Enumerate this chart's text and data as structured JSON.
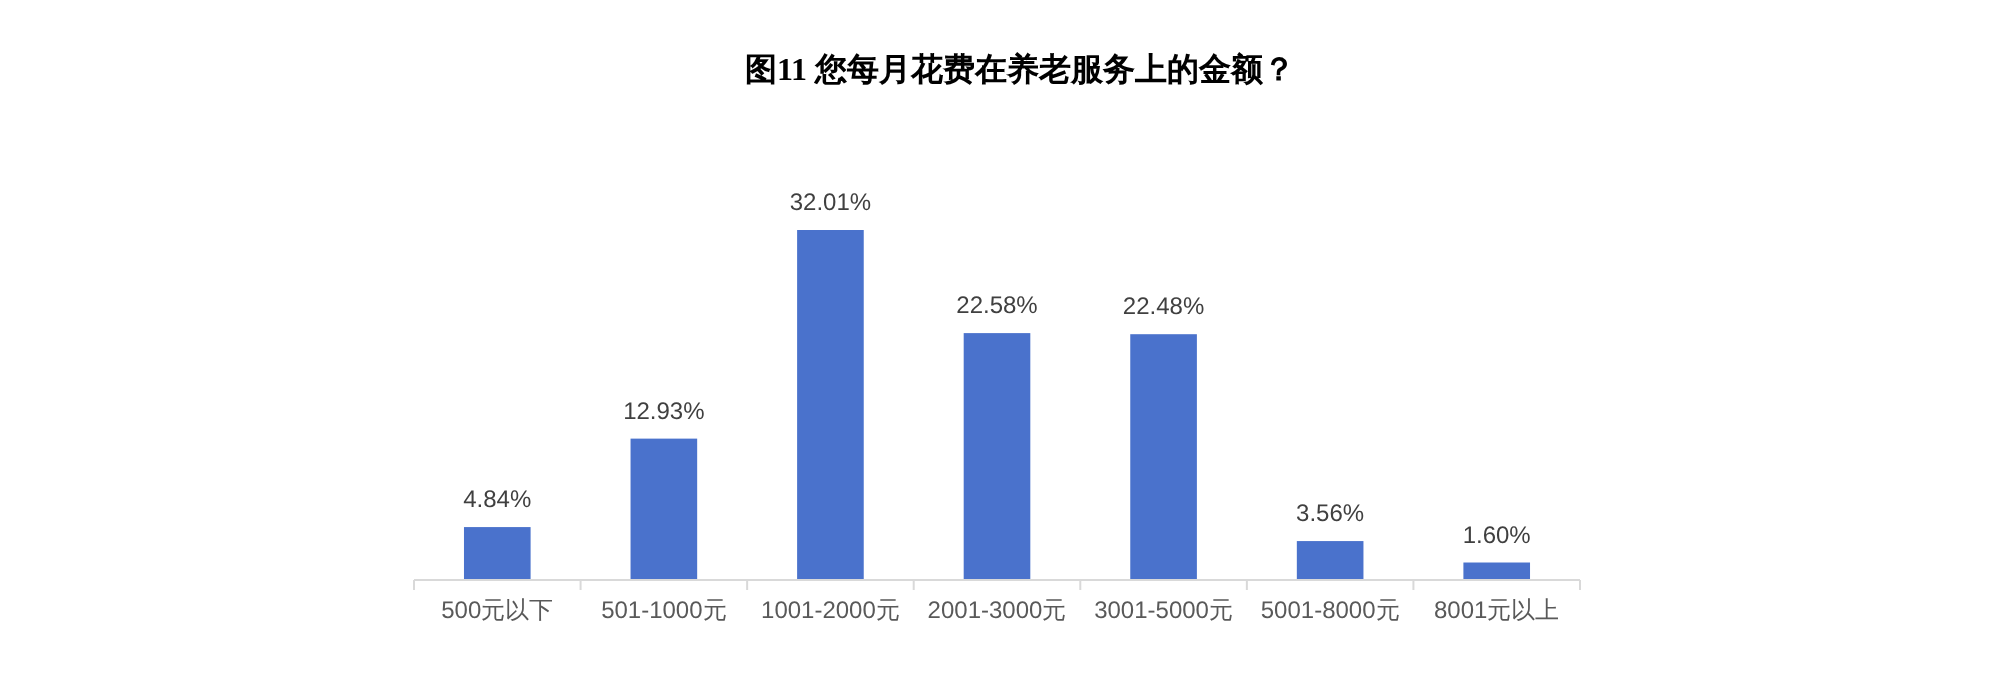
{
  "chart_data": {
    "type": "bar",
    "title": "图11  您每月花费在养老服务上的金额？",
    "categories": [
      "500元以下",
      "501-1000元",
      "1001-2000元",
      "2001-3000元",
      "3001-5000元",
      "5001-8000元",
      "8001元以上"
    ],
    "values": [
      4.84,
      12.93,
      32.01,
      22.58,
      22.48,
      3.56,
      1.6
    ],
    "value_labels": [
      "4.84%",
      "12.93%",
      "32.01%",
      "22.58%",
      "22.48%",
      "3.56%",
      "1.60%"
    ],
    "color": "#4a72cc"
  }
}
